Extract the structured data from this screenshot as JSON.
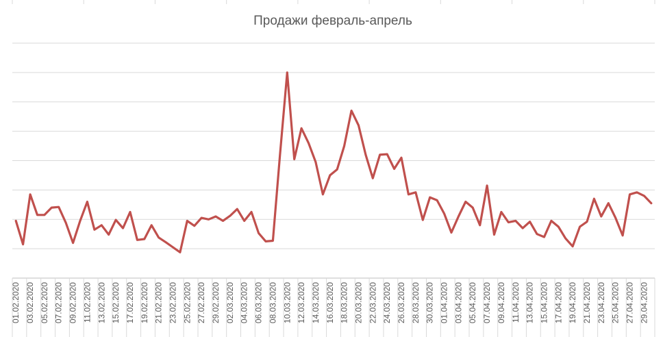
{
  "chart_data": {
    "type": "line",
    "title": "Продажи февраль-апрель",
    "xlabel": "",
    "ylabel": "",
    "y_tick_labels_visible": false,
    "grid": "horizontal",
    "ylim": [
      0,
      8
    ],
    "line_color": "#c0504d",
    "x": [
      "01.02.2020",
      "02.02.2020",
      "03.02.2020",
      "04.02.2020",
      "05.02.2020",
      "06.02.2020",
      "07.02.2020",
      "08.02.2020",
      "09.02.2020",
      "10.02.2020",
      "11.02.2020",
      "12.02.2020",
      "13.02.2020",
      "14.02.2020",
      "15.02.2020",
      "16.02.2020",
      "17.02.2020",
      "18.02.2020",
      "19.02.2020",
      "20.02.2020",
      "21.02.2020",
      "22.02.2020",
      "23.02.2020",
      "24.02.2020",
      "25.02.2020",
      "26.02.2020",
      "27.02.2020",
      "28.02.2020",
      "29.02.2020",
      "01.03.2020",
      "02.03.2020",
      "03.03.2020",
      "04.03.2020",
      "05.03.2020",
      "06.03.2020",
      "07.03.2020",
      "08.03.2020",
      "09.03.2020",
      "10.03.2020",
      "11.03.2020",
      "12.03.2020",
      "13.03.2020",
      "14.03.2020",
      "15.03.2020",
      "16.03.2020",
      "17.03.2020",
      "18.03.2020",
      "19.03.2020",
      "20.03.2020",
      "21.03.2020",
      "22.03.2020",
      "23.03.2020",
      "24.03.2020",
      "25.03.2020",
      "26.03.2020",
      "27.03.2020",
      "28.03.2020",
      "29.03.2020",
      "30.03.2020",
      "31.03.2020",
      "01.04.2020",
      "02.04.2020",
      "03.04.2020",
      "04.04.2020",
      "05.04.2020",
      "06.04.2020",
      "07.04.2020",
      "08.04.2020",
      "09.04.2020",
      "10.04.2020",
      "11.04.2020",
      "12.04.2020",
      "13.04.2020",
      "14.04.2020",
      "15.04.2020",
      "16.04.2020",
      "17.04.2020",
      "18.04.2020",
      "19.04.2020",
      "20.04.2020",
      "21.04.2020",
      "22.04.2020",
      "23.04.2020",
      "24.04.2020",
      "25.04.2020",
      "26.04.2020",
      "27.04.2020",
      "28.04.2020",
      "29.04.2020",
      "30.04.2020"
    ],
    "tick_labels": [
      "01.02.2020",
      "03.02.2020",
      "05.02.2020",
      "07.02.2020",
      "09.02.2020",
      "11.02.2020",
      "13.02.2020",
      "15.02.2020",
      "17.02.2020",
      "19.02.2020",
      "21.02.2020",
      "23.02.2020",
      "25.02.2020",
      "27.02.2020",
      "29.02.2020",
      "02.03.2020",
      "04.03.2020",
      "06.03.2020",
      "08.03.2020",
      "10.03.2020",
      "12.03.2020",
      "14.03.2020",
      "16.03.2020",
      "18.03.2020",
      "20.03.2020",
      "22.03.2020",
      "24.03.2020",
      "26.03.2020",
      "28.03.2020",
      "30.03.2020",
      "01.04.2020",
      "03.04.2020",
      "05.04.2020",
      "07.04.2020",
      "09.04.2020",
      "11.04.2020",
      "13.04.2020",
      "15.04.2020",
      "17.04.2020",
      "19.04.2020",
      "21.04.2020",
      "23.04.2020",
      "25.04.2020",
      "27.04.2020",
      "29.04.2020"
    ],
    "series": [
      {
        "values": [
          1.95,
          1.15,
          2.85,
          2.15,
          2.15,
          2.4,
          2.42,
          1.88,
          1.2,
          1.95,
          2.6,
          1.65,
          1.8,
          1.48,
          1.98,
          1.7,
          2.25,
          1.3,
          1.33,
          1.8,
          1.38,
          1.22,
          1.05,
          0.88,
          1.95,
          1.78,
          2.05,
          2.0,
          2.1,
          1.95,
          2.12,
          2.35,
          1.95,
          2.25,
          1.53,
          1.25,
          1.27,
          4.2,
          7.0,
          4.05,
          5.1,
          4.6,
          3.95,
          2.85,
          3.5,
          3.7,
          4.5,
          5.7,
          5.2,
          4.2,
          3.4,
          4.2,
          4.22,
          3.72,
          4.1,
          2.85,
          2.92,
          1.98,
          2.75,
          2.65,
          2.2,
          1.55,
          2.1,
          2.6,
          2.4,
          1.8,
          3.15,
          1.48,
          2.25,
          1.9,
          1.95,
          1.7,
          1.92,
          1.5,
          1.4,
          1.95,
          1.75,
          1.35,
          1.08,
          1.75,
          1.92,
          2.7,
          2.1,
          2.55,
          2.05,
          1.45,
          2.85,
          2.92,
          2.8,
          2.55
        ]
      }
    ]
  }
}
